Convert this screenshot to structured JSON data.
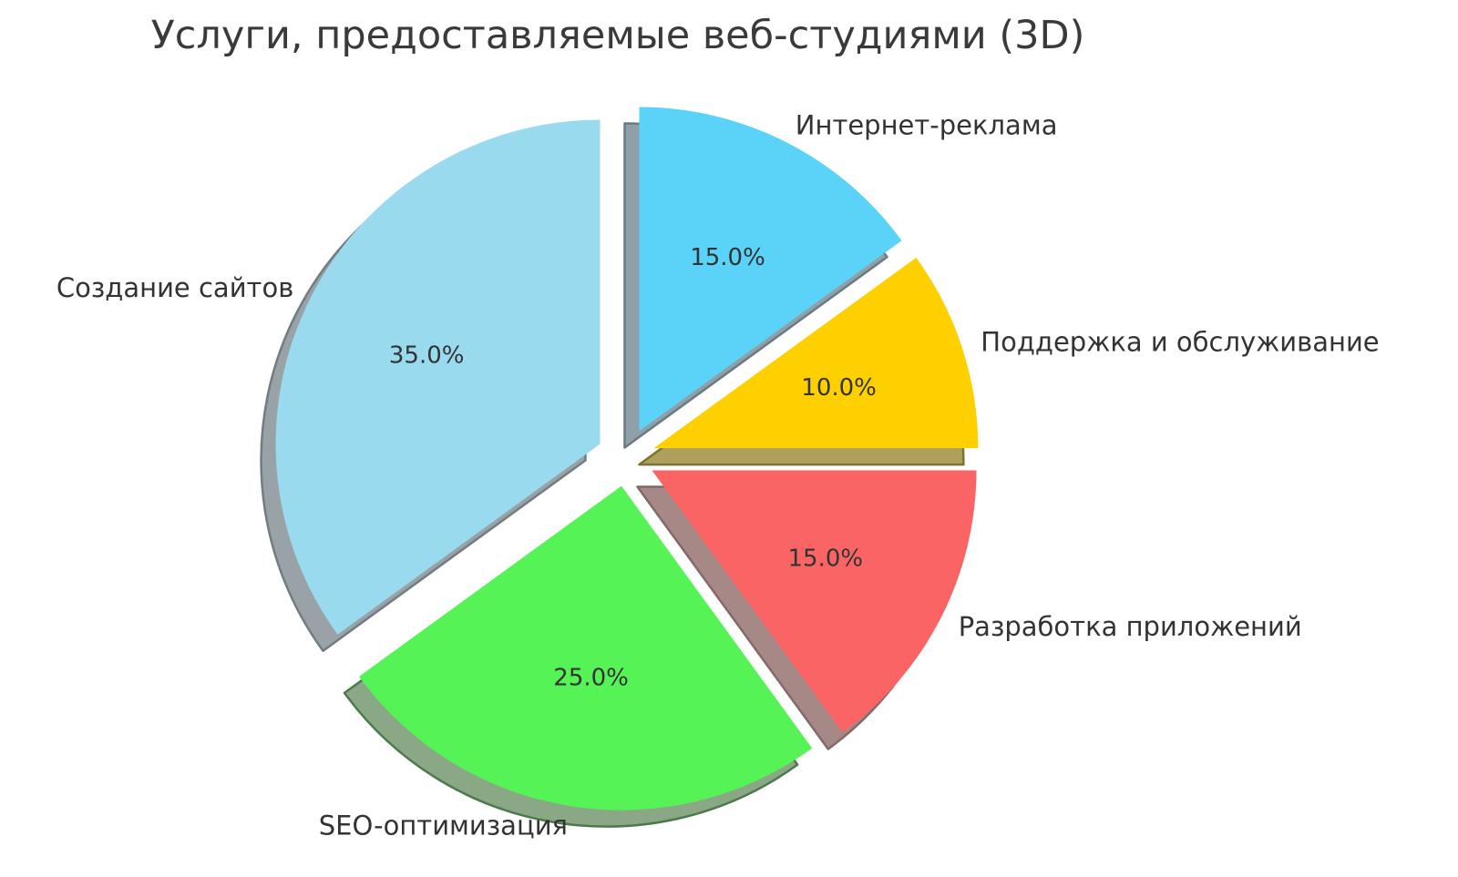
{
  "chart_data": {
    "type": "pie",
    "title": "Услуги, предоставляемые веб-студиями (3D)",
    "style": "exploded pie with 3d drop shadow",
    "direction": "clockwise",
    "start_angle": "12 o'clock",
    "legend": "none",
    "labels": [
      "Интернет-реклама",
      "Поддержка и обслуживание",
      "Разработка приложений",
      "SEO-оптимизация",
      "Создание сайтов"
    ],
    "values": [
      15.0,
      10.0,
      15.0,
      25.0,
      35.0
    ],
    "pct_labels": [
      "15.0%",
      "10.0%",
      "15.0%",
      "25.0%",
      "35.0%"
    ],
    "colors": [
      "#5bd3f8",
      "#ffd000",
      "#fa6464",
      "#55f355",
      "#99daee"
    ],
    "shadow_colors": [
      "#8fa0a8",
      "#aca05c",
      "#a68887",
      "#8aa886",
      "#99a3a7"
    ],
    "shadow_edge_colors": [
      "#6b7a82",
      "#7d7433",
      "#84696a",
      "#4d7a4d",
      "#737d81"
    ],
    "title_color": "#3a3a3a",
    "label_color": "#333333",
    "pct_color": "#333333",
    "background_color": "#ffffff"
  }
}
